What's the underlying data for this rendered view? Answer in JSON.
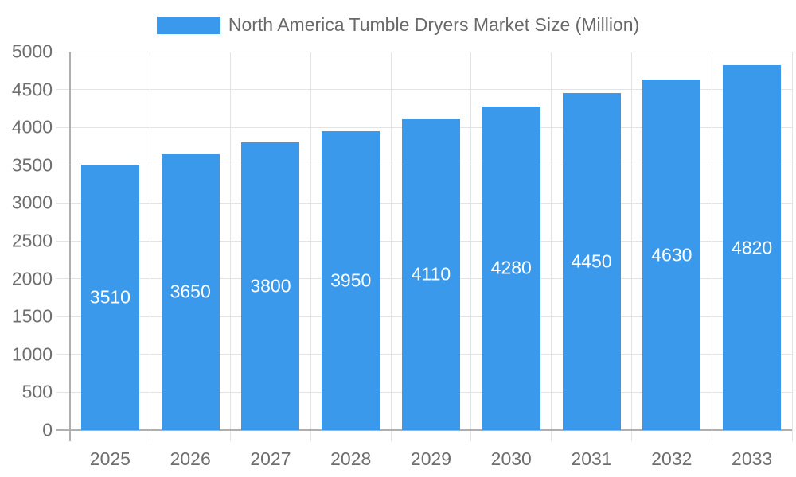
{
  "chart_data": {
    "type": "bar",
    "title": "North America Tumble Dryers Market Size (Million)",
    "categories": [
      "2025",
      "2026",
      "2027",
      "2028",
      "2029",
      "2030",
      "2031",
      "2032",
      "2033"
    ],
    "values": [
      3510,
      3650,
      3800,
      3950,
      4110,
      4280,
      4450,
      4630,
      4820
    ],
    "xlabel": "",
    "ylabel": "",
    "ylim": [
      0,
      5000
    ],
    "ytick_step": 500,
    "ytick_labels": [
      "0",
      "500",
      "1000",
      "1500",
      "2000",
      "2500",
      "3000",
      "3500",
      "4000",
      "4500",
      "5000"
    ],
    "grid": true,
    "legend_position": "top",
    "bar_label_position": "inside-center",
    "colors": {
      "bar": "#3B99EC",
      "bar_label": "#FFFFFF",
      "axis_line": "#AFAFAF",
      "grid_line": "#E3E3E3",
      "tick_label": "#6E6E6E",
      "legend_text": "#68696B",
      "background": "#FFFFFF"
    }
  }
}
